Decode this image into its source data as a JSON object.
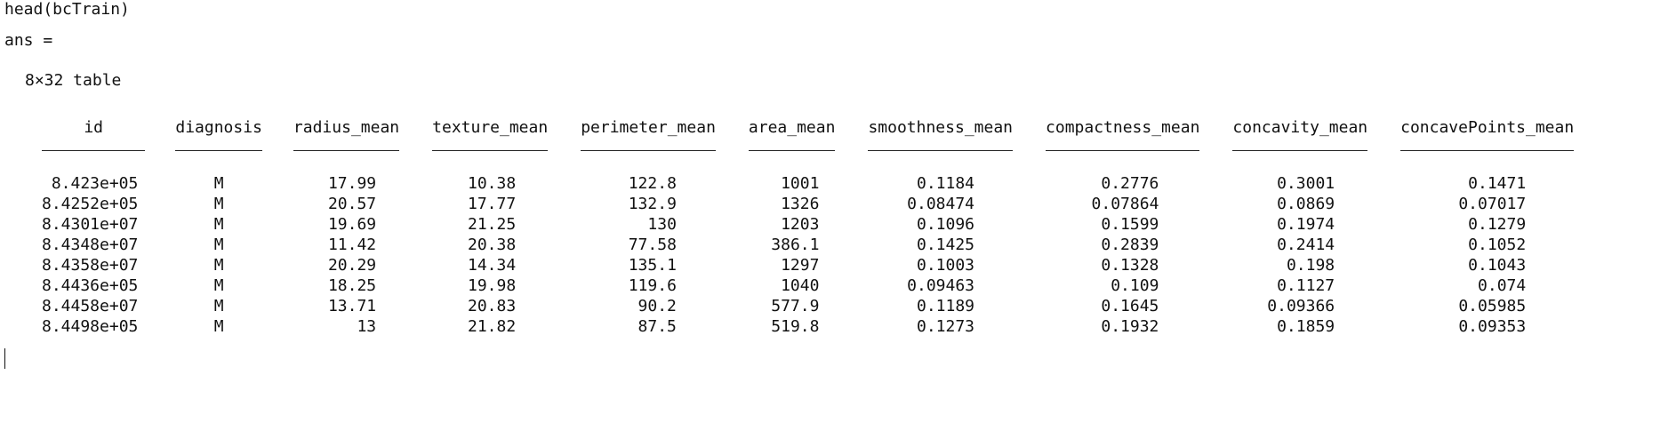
{
  "command": "head(bcTrain)",
  "ans_label": "ans =",
  "table_size": "8×32 table",
  "table": {
    "columns": [
      "id",
      "diagnosis",
      "radius_mean",
      "texture_mean",
      "perimeter_mean",
      "area_mean",
      "smoothness_mean",
      "compactness_mean",
      "concavity_mean",
      "concavePoints_mean"
    ],
    "rows": [
      [
        "8.423e+05",
        "M",
        "17.99",
        "10.38",
        "122.8",
        "1001",
        "0.1184",
        "0.2776",
        "0.3001",
        "0.1471"
      ],
      [
        "8.4252e+05",
        "M",
        "20.57",
        "17.77",
        "132.9",
        "1326",
        "0.08474",
        "0.07864",
        "0.0869",
        "0.07017"
      ],
      [
        "8.4301e+07",
        "M",
        "19.69",
        "21.25",
        "130",
        "1203",
        "0.1096",
        "0.1599",
        "0.1974",
        "0.1279"
      ],
      [
        "8.4348e+07",
        "M",
        "11.42",
        "20.38",
        "77.58",
        "386.1",
        "0.1425",
        "0.2839",
        "0.2414",
        "0.1052"
      ],
      [
        "8.4358e+07",
        "M",
        "20.29",
        "14.34",
        "135.1",
        "1297",
        "0.1003",
        "0.1328",
        "0.198",
        "0.1043"
      ],
      [
        "8.4436e+05",
        "M",
        "18.25",
        "19.98",
        "119.6",
        "1040",
        "0.09463",
        "0.109",
        "0.1127",
        "0.074"
      ],
      [
        "8.4458e+07",
        "M",
        "13.71",
        "20.83",
        "90.2",
        "577.9",
        "0.1189",
        "0.1645",
        "0.09366",
        "0.05985"
      ],
      [
        "8.4498e+05",
        "M",
        "13",
        "21.82",
        "87.5",
        "519.8",
        "0.1273",
        "0.1932",
        "0.1859",
        "0.09353"
      ]
    ]
  }
}
